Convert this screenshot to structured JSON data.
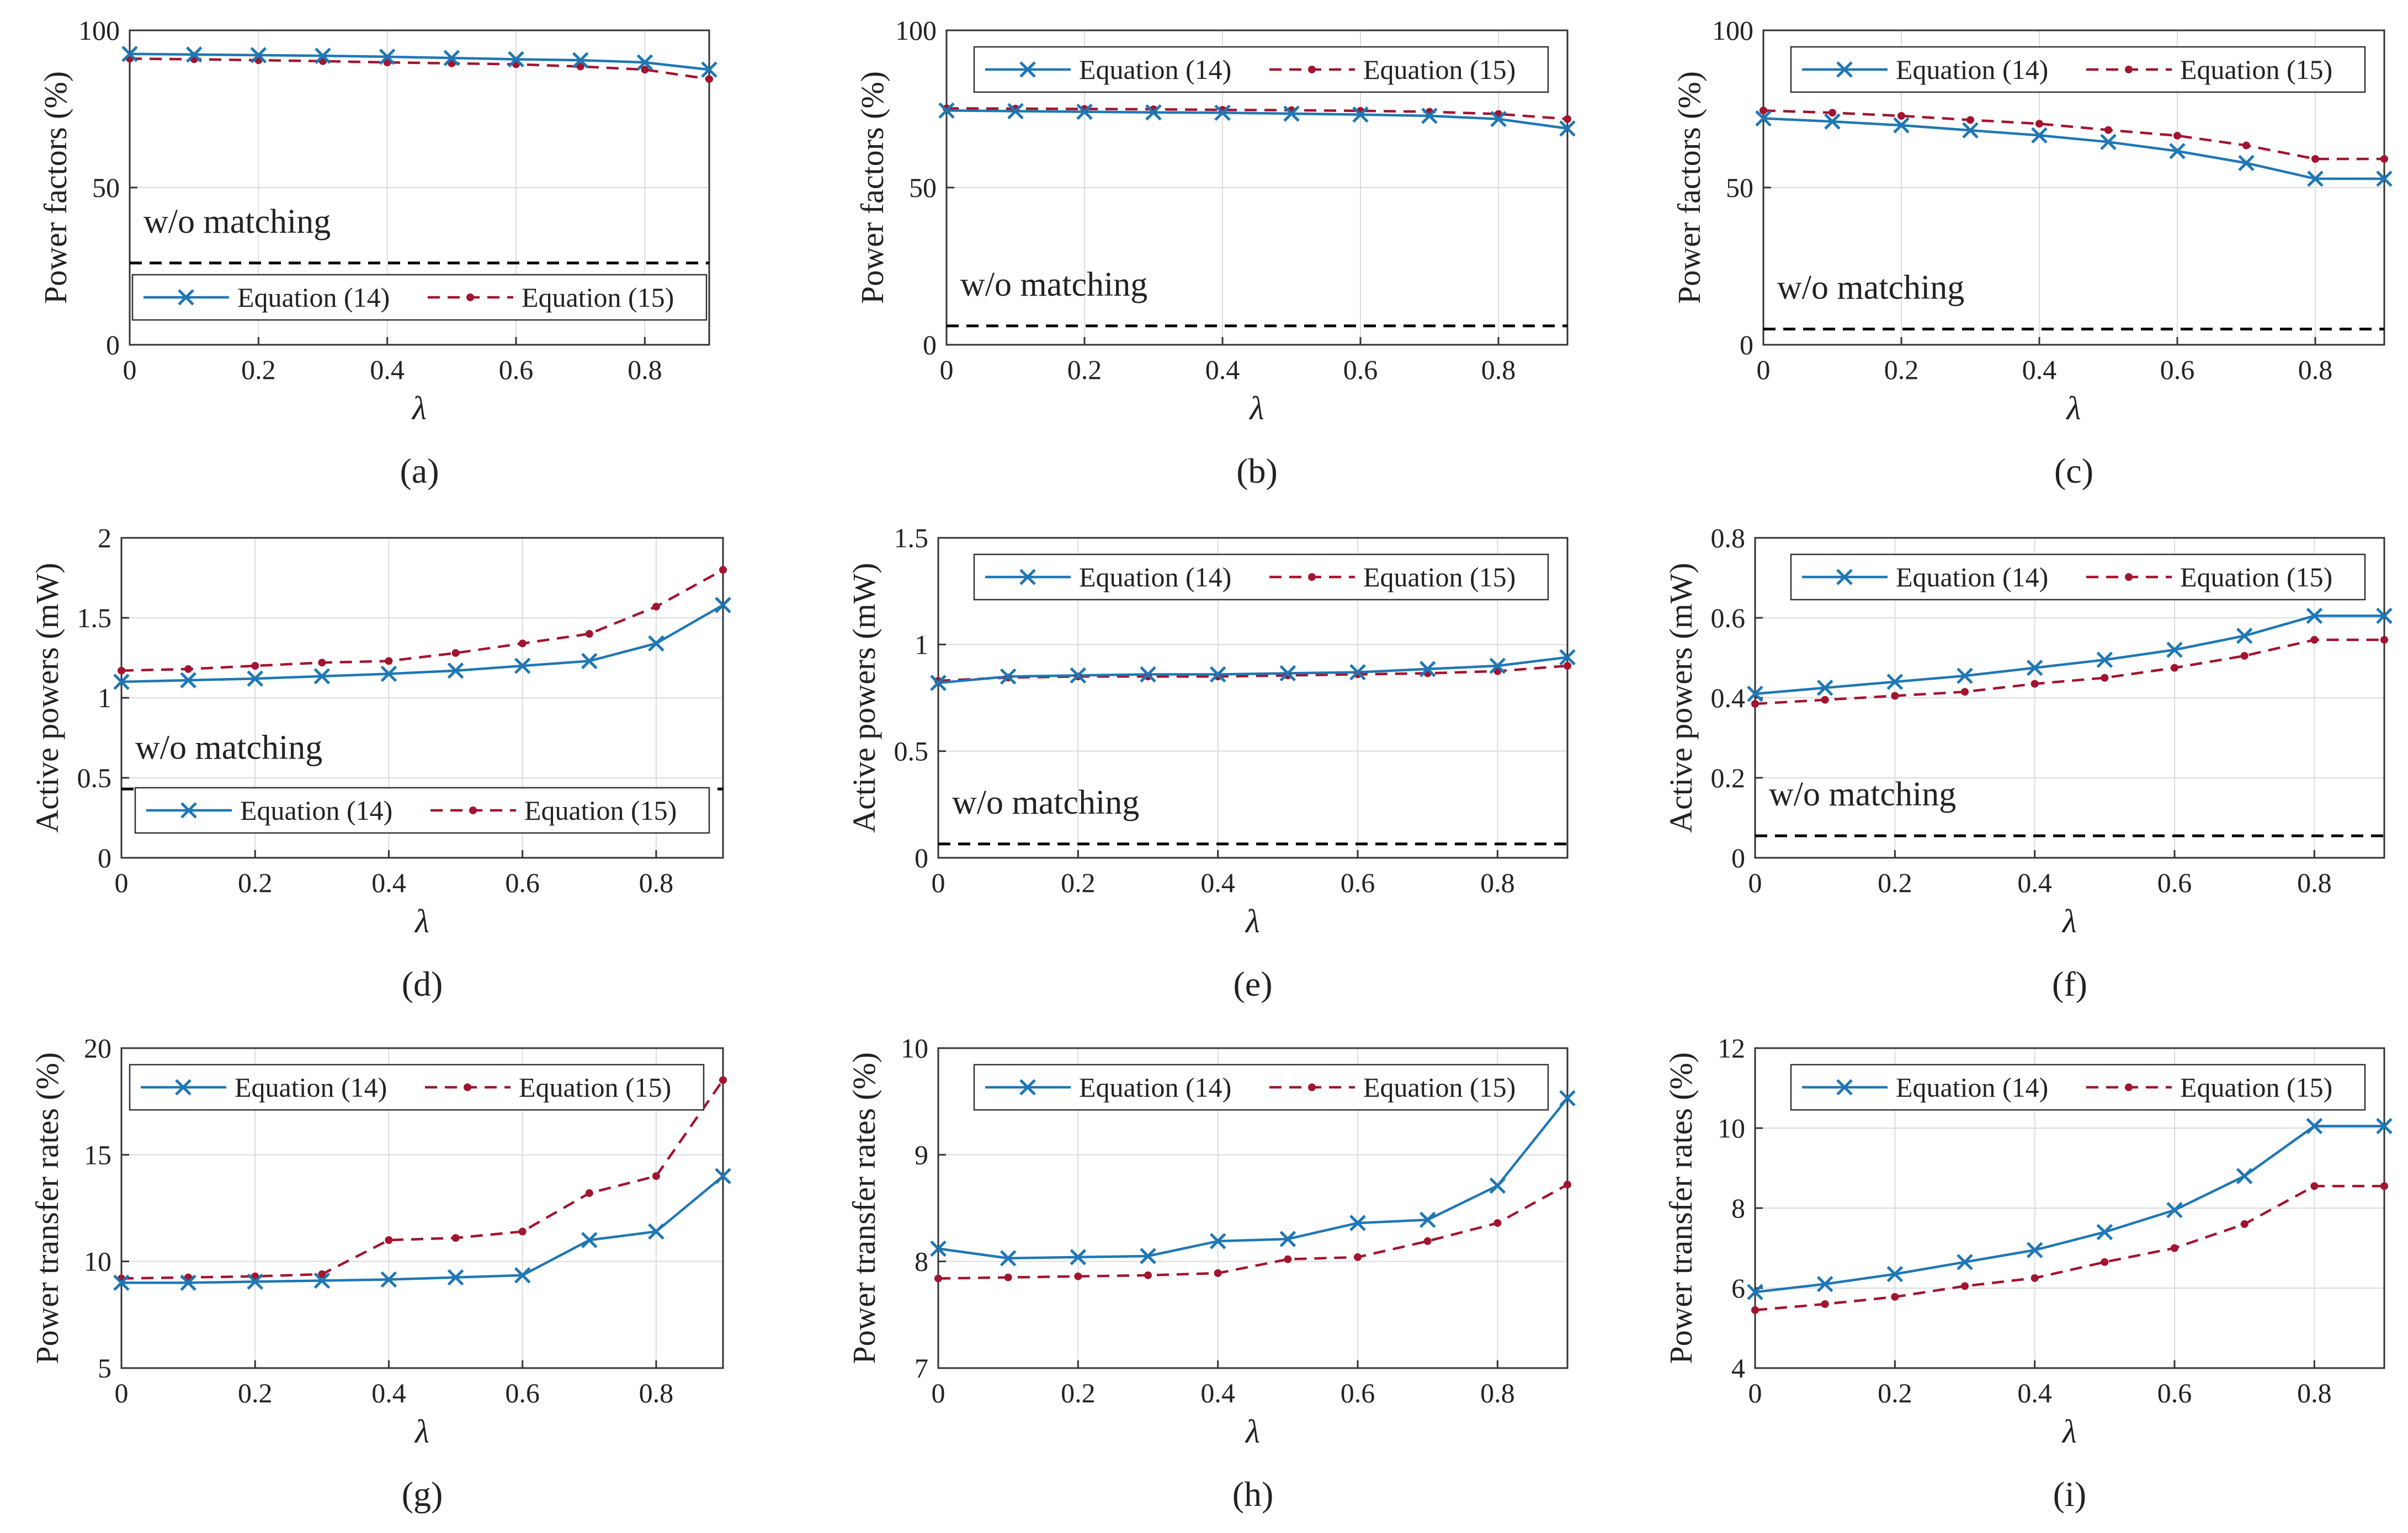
{
  "figure": {
    "series_colors": {
      "eq14": "#1f77b4",
      "eq15": "#a2142f",
      "baseline": "#000000",
      "grid": "#dcdcdc",
      "axis": "#333333"
    },
    "icons": {
      "eq14_marker": "x-marker",
      "eq15_marker": "dot-marker"
    }
  },
  "chart_data": [
    {
      "panel": "a",
      "caption": "(a)",
      "type": "line",
      "xlabel": "λ",
      "ylabel": "Power factors (%)",
      "xlim": [
        0,
        0.9
      ],
      "ylim": [
        0,
        100
      ],
      "xticks": [
        0,
        0.2,
        0.4,
        0.6,
        0.8
      ],
      "xtick_labels": [
        "0",
        "0.2",
        "0.4",
        "0.6",
        "0.8"
      ],
      "yticks": [
        0,
        50,
        100
      ],
      "ytick_labels": [
        "0",
        "50",
        "100"
      ],
      "grid": true,
      "legend_position": "lower-center",
      "baseline": {
        "label": "w/o matching",
        "value": 26
      },
      "x": [
        0,
        0.1,
        0.2,
        0.3,
        0.4,
        0.5,
        0.6,
        0.7,
        0.8,
        0.9
      ],
      "series": [
        {
          "name": "Equation (14)",
          "values": [
            92.5,
            92.3,
            92.1,
            91.9,
            91.6,
            91.2,
            90.8,
            90.5,
            89.8,
            87.5
          ]
        },
        {
          "name": "Equation (15)",
          "values": [
            91,
            90.8,
            90.5,
            90.2,
            89.8,
            89.5,
            89.2,
            88.5,
            87.5,
            84.5
          ]
        }
      ]
    },
    {
      "panel": "b",
      "caption": "(b)",
      "type": "line",
      "xlabel": "λ",
      "ylabel": "Power factors (%)",
      "xlim": [
        0,
        0.9
      ],
      "ylim": [
        0,
        100
      ],
      "xticks": [
        0,
        0.2,
        0.4,
        0.6,
        0.8
      ],
      "xtick_labels": [
        "0",
        "0.2",
        "0.4",
        "0.6",
        "0.8"
      ],
      "yticks": [
        0,
        50,
        100
      ],
      "ytick_labels": [
        "0",
        "50",
        "100"
      ],
      "grid": true,
      "legend_position": "top-right",
      "baseline": {
        "label": "w/o matching",
        "value": 6
      },
      "x": [
        0,
        0.1,
        0.2,
        0.3,
        0.4,
        0.5,
        0.6,
        0.7,
        0.8,
        0.9
      ],
      "series": [
        {
          "name": "Equation (14)",
          "values": [
            74.5,
            74.3,
            74.1,
            73.9,
            73.8,
            73.5,
            73.2,
            72.8,
            71.8,
            68.8
          ]
        },
        {
          "name": "Equation (15)",
          "values": [
            75.2,
            75.1,
            75,
            74.9,
            74.7,
            74.6,
            74.4,
            74.1,
            73.4,
            71.8
          ]
        }
      ]
    },
    {
      "panel": "c",
      "caption": "(c)",
      "type": "line",
      "xlabel": "λ",
      "ylabel": "Power factors (%)",
      "xlim": [
        0,
        0.9
      ],
      "ylim": [
        0,
        100
      ],
      "xticks": [
        0,
        0.2,
        0.4,
        0.6,
        0.8
      ],
      "xtick_labels": [
        "0",
        "0.2",
        "0.4",
        "0.6",
        "0.8"
      ],
      "yticks": [
        0,
        50,
        100
      ],
      "ytick_labels": [
        "0",
        "50",
        "100"
      ],
      "grid": true,
      "legend_position": "top-right",
      "baseline": {
        "label": "w/o matching",
        "value": 5
      },
      "x": [
        0,
        0.1,
        0.2,
        0.3,
        0.4,
        0.5,
        0.6,
        0.7,
        0.8,
        0.9
      ],
      "series": [
        {
          "name": "Equation (14)",
          "values": [
            72,
            71,
            69.8,
            68.2,
            66.6,
            64.5,
            61.6,
            57.8,
            52.8,
            52.8
          ]
        },
        {
          "name": "Equation (15)",
          "values": [
            74.5,
            73.8,
            72.8,
            71.5,
            70.3,
            68.3,
            66.5,
            63.4,
            59.1,
            59.1
          ]
        }
      ]
    },
    {
      "panel": "d",
      "caption": "(d)",
      "type": "line",
      "xlabel": "λ",
      "ylabel": "Active powers (mW)",
      "xlim": [
        0,
        0.9
      ],
      "ylim": [
        0,
        2
      ],
      "xticks": [
        0,
        0.2,
        0.4,
        0.6,
        0.8
      ],
      "xtick_labels": [
        "0",
        "0.2",
        "0.4",
        "0.6",
        "0.8"
      ],
      "yticks": [
        0,
        0.5,
        1,
        1.5,
        2
      ],
      "ytick_labels": [
        "0",
        "0.5",
        "1",
        "1.5",
        "2"
      ],
      "grid": true,
      "legend_position": "lower-center",
      "baseline": {
        "label": "w/o matching",
        "value": 0.43
      },
      "x": [
        0,
        0.1,
        0.2,
        0.3,
        0.4,
        0.5,
        0.6,
        0.7,
        0.8,
        0.9
      ],
      "series": [
        {
          "name": "Equation (14)",
          "values": [
            1.1,
            1.11,
            1.12,
            1.135,
            1.15,
            1.17,
            1.2,
            1.23,
            1.34,
            1.58
          ]
        },
        {
          "name": "Equation (15)",
          "values": [
            1.17,
            1.18,
            1.2,
            1.22,
            1.23,
            1.28,
            1.34,
            1.4,
            1.57,
            1.8
          ]
        }
      ]
    },
    {
      "panel": "e",
      "caption": "(e)",
      "type": "line",
      "xlabel": "λ",
      "ylabel": "Active powers (mW)",
      "xlim": [
        0,
        0.9
      ],
      "ylim": [
        0,
        1.5
      ],
      "xticks": [
        0,
        0.2,
        0.4,
        0.6,
        0.8
      ],
      "xtick_labels": [
        "0",
        "0.2",
        "0.4",
        "0.6",
        "0.8"
      ],
      "yticks": [
        0,
        0.5,
        1,
        1.5
      ],
      "ytick_labels": [
        "0",
        "0.5",
        "1",
        "1.5"
      ],
      "grid": true,
      "legend_position": "top-right",
      "baseline": {
        "label": "w/o matching",
        "value": 0.065
      },
      "x": [
        0,
        0.1,
        0.2,
        0.3,
        0.4,
        0.5,
        0.6,
        0.7,
        0.8,
        0.9
      ],
      "series": [
        {
          "name": "Equation (14)",
          "values": [
            0.82,
            0.85,
            0.855,
            0.86,
            0.86,
            0.865,
            0.87,
            0.885,
            0.9,
            0.94
          ]
        },
        {
          "name": "Equation (15)",
          "values": [
            0.83,
            0.845,
            0.85,
            0.85,
            0.85,
            0.855,
            0.86,
            0.865,
            0.875,
            0.9
          ]
        }
      ]
    },
    {
      "panel": "f",
      "caption": "(f)",
      "type": "line",
      "xlabel": "λ",
      "ylabel": "Active powers (mW)",
      "xlim": [
        0,
        0.9
      ],
      "ylim": [
        0,
        0.8
      ],
      "xticks": [
        0,
        0.2,
        0.4,
        0.6,
        0.8
      ],
      "xtick_labels": [
        "0",
        "0.2",
        "0.4",
        "0.6",
        "0.8"
      ],
      "yticks": [
        0,
        0.2,
        0.4,
        0.6,
        0.8
      ],
      "ytick_labels": [
        "0",
        "0.2",
        "0.4",
        "0.6",
        "0.8"
      ],
      "grid": true,
      "legend_position": "top-right",
      "baseline": {
        "label": "w/o matching",
        "value": 0.055
      },
      "x": [
        0,
        0.1,
        0.2,
        0.3,
        0.4,
        0.5,
        0.6,
        0.7,
        0.8,
        0.9
      ],
      "series": [
        {
          "name": "Equation (14)",
          "values": [
            0.41,
            0.425,
            0.44,
            0.455,
            0.475,
            0.495,
            0.52,
            0.555,
            0.605,
            0.605
          ]
        },
        {
          "name": "Equation (15)",
          "values": [
            0.385,
            0.395,
            0.405,
            0.415,
            0.435,
            0.45,
            0.475,
            0.505,
            0.545,
            0.545
          ]
        }
      ]
    },
    {
      "panel": "g",
      "caption": "(g)",
      "type": "line",
      "xlabel": "λ",
      "ylabel": "Power transfer rates (%)",
      "xlim": [
        0,
        0.9
      ],
      "ylim": [
        5,
        20
      ],
      "xticks": [
        0,
        0.2,
        0.4,
        0.6,
        0.8
      ],
      "xtick_labels": [
        "0",
        "0.2",
        "0.4",
        "0.6",
        "0.8"
      ],
      "yticks": [
        5,
        10,
        15,
        20
      ],
      "ytick_labels": [
        "5",
        "10",
        "15",
        "20"
      ],
      "grid": true,
      "legend_position": "top-right",
      "x": [
        0,
        0.1,
        0.2,
        0.3,
        0.4,
        0.5,
        0.6,
        0.7,
        0.8,
        0.9
      ],
      "series": [
        {
          "name": "Equation (14)",
          "values": [
            9,
            9,
            9.05,
            9.1,
            9.15,
            9.25,
            9.35,
            11,
            11.4,
            14
          ]
        },
        {
          "name": "Equation (15)",
          "values": [
            9.2,
            9.25,
            9.3,
            9.4,
            11,
            11.1,
            11.4,
            13.2,
            14,
            18.5
          ]
        }
      ]
    },
    {
      "panel": "h",
      "caption": "(h)",
      "type": "line",
      "xlabel": "λ",
      "ylabel": "Power transfer rates (%)",
      "xlim": [
        0,
        0.9
      ],
      "ylim": [
        7,
        10
      ],
      "xticks": [
        0,
        0.2,
        0.4,
        0.6,
        0.8
      ],
      "xtick_labels": [
        "0",
        "0.2",
        "0.4",
        "0.6",
        "0.8"
      ],
      "yticks": [
        7,
        8,
        9,
        10
      ],
      "ytick_labels": [
        "7",
        "8",
        "9",
        "10"
      ],
      "grid": true,
      "legend_position": "top-right",
      "x": [
        0,
        0.1,
        0.2,
        0.3,
        0.4,
        0.5,
        0.6,
        0.7,
        0.8,
        0.9
      ],
      "series": [
        {
          "name": "Equation (14)",
          "values": [
            8.12,
            8.03,
            8.04,
            8.05,
            8.19,
            8.21,
            8.36,
            8.39,
            8.71,
            9.53
          ]
        },
        {
          "name": "Equation (15)",
          "values": [
            7.84,
            7.85,
            7.86,
            7.87,
            7.89,
            8.02,
            8.04,
            8.19,
            8.36,
            8.72
          ]
        }
      ]
    },
    {
      "panel": "i",
      "caption": "(i)",
      "type": "line",
      "xlabel": "λ",
      "ylabel": "Power transfer rates (%)",
      "xlim": [
        0,
        0.9
      ],
      "ylim": [
        4,
        12
      ],
      "xticks": [
        0,
        0.2,
        0.4,
        0.6,
        0.8
      ],
      "xtick_labels": [
        "0",
        "0.2",
        "0.4",
        "0.6",
        "0.8"
      ],
      "yticks": [
        4,
        6,
        8,
        10,
        12
      ],
      "ytick_labels": [
        "4",
        "6",
        "8",
        "10",
        "12"
      ],
      "grid": true,
      "legend_position": "top-right",
      "x": [
        0,
        0.1,
        0.2,
        0.3,
        0.4,
        0.5,
        0.6,
        0.7,
        0.8,
        0.9
      ],
      "series": [
        {
          "name": "Equation (14)",
          "values": [
            5.9,
            6.1,
            6.35,
            6.65,
            6.95,
            7.4,
            7.95,
            8.8,
            10.05,
            10.05
          ]
        },
        {
          "name": "Equation (15)",
          "values": [
            5.45,
            5.6,
            5.78,
            6.05,
            6.25,
            6.65,
            7,
            7.6,
            8.55,
            8.55
          ]
        }
      ]
    }
  ]
}
